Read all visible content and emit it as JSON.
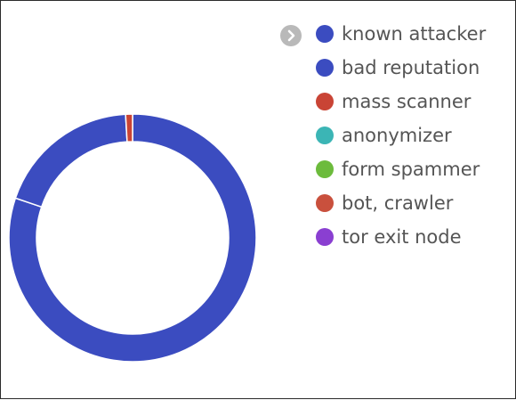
{
  "legend_toggle_icon": "chevron-right-icon",
  "chart_data": {
    "type": "pie",
    "donut": true,
    "legend_position": "top-right",
    "series": [
      {
        "name": "known attacker",
        "color": "#3b4cc0",
        "value": 80.2
      },
      {
        "name": "bad reputation",
        "color": "#3b4cc0",
        "value": 18.9
      },
      {
        "name": "mass scanner",
        "color": "#c94435",
        "value": 0.9
      },
      {
        "name": "anonymizer",
        "color": "#3bb5b5",
        "value": 0
      },
      {
        "name": "form spammer",
        "color": "#6cbb3c",
        "value": 0
      },
      {
        "name": "bot, crawler",
        "color": "#c9503d",
        "value": 0
      },
      {
        "name": "tor exit node",
        "color": "#8a3fd1",
        "value": 0
      }
    ]
  }
}
